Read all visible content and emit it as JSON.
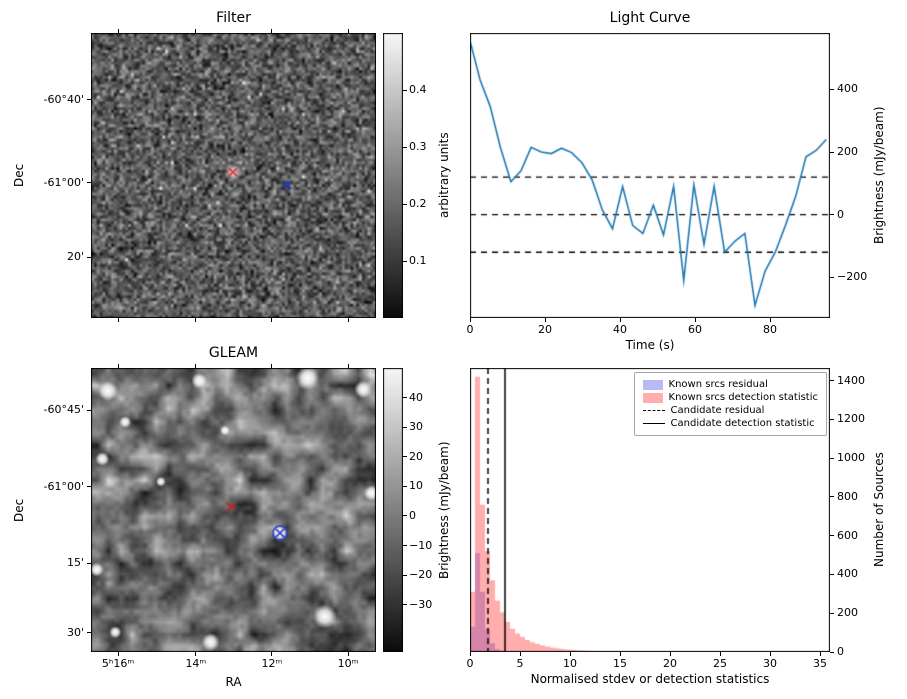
{
  "chart_data": [
    {
      "id": "filter",
      "type": "heatmap",
      "title": "Filter",
      "ylabel": "Dec",
      "yticks": [
        {
          "label": "-60°40'",
          "pos": 0.235
        },
        {
          "label": "-61°00'",
          "pos": 0.526
        },
        {
          "label": "20'",
          "pos": 0.786
        }
      ],
      "xticks": [
        {
          "label": "",
          "pos": 0.095
        },
        {
          "label": "",
          "pos": 0.368
        },
        {
          "label": "",
          "pos": 0.635
        },
        {
          "label": "",
          "pos": 0.902
        }
      ],
      "colorbar": {
        "label": "arbitrary units",
        "min": 0,
        "max": 0.5,
        "ticks": [
          {
            "v": 0.1,
            "label": "0.1"
          },
          {
            "v": 0.2,
            "label": "0.2"
          },
          {
            "v": 0.3,
            "label": "0.3"
          },
          {
            "v": 0.4,
            "label": "0.4"
          }
        ]
      },
      "markers": [
        {
          "shape": "x",
          "color": "#d93a3a",
          "x": 0.498,
          "y": 0.488,
          "halo": true
        },
        {
          "shape": "x",
          "color": "#2438cc",
          "x": 0.688,
          "y": 0.533
        }
      ],
      "noise": {
        "seed": 42,
        "smooth": false,
        "octaves": [
          {
            "res": 100,
            "base": 92,
            "spread": 110,
            "alpha": 1,
            "speckle": 0.012
          }
        ]
      }
    },
    {
      "id": "lightcurve",
      "type": "line",
      "title": "Light Curve",
      "xlabel": "Time (s)",
      "ylabel": "Brightness (mJy/beam)",
      "xlim": [
        0,
        96
      ],
      "ylim": [
        -330,
        580
      ],
      "line_color": "#1f77b4",
      "hlines": [
        120,
        0,
        -120
      ],
      "xticks": [
        {
          "v": 0,
          "label": "0"
        },
        {
          "v": 20,
          "label": "20"
        },
        {
          "v": 40,
          "label": "40"
        },
        {
          "v": 60,
          "label": "60"
        },
        {
          "v": 80,
          "label": "80"
        }
      ],
      "yticks": [
        {
          "v": 400,
          "label": "400"
        },
        {
          "v": 200,
          "label": "200"
        },
        {
          "v": 0,
          "label": "0"
        },
        {
          "v": -200,
          "label": "−200"
        }
      ],
      "x": [
        0,
        2.7,
        5.4,
        8.1,
        10.9,
        13.6,
        16.3,
        19.0,
        21.7,
        24.4,
        27.1,
        29.9,
        32.6,
        35.3,
        38.0,
        40.7,
        43.4,
        46.1,
        48.9,
        51.6,
        54.3,
        57.0,
        59.7,
        62.4,
        65.1,
        67.9,
        70.6,
        73.3,
        76.0,
        78.7,
        81.4,
        84.1,
        86.9,
        89.6,
        92.3,
        95.0
      ],
      "y": [
        555,
        430,
        345,
        215,
        105,
        140,
        215,
        200,
        195,
        212,
        198,
        165,
        110,
        15,
        -45,
        90,
        -35,
        -60,
        30,
        -65,
        90,
        -210,
        95,
        -95,
        90,
        -120,
        -85,
        -60,
        -290,
        -180,
        -120,
        -35,
        60,
        185,
        205,
        240
      ]
    },
    {
      "id": "gleam",
      "type": "heatmap",
      "title": "GLEAM",
      "xlabel": "RA",
      "ylabel": "Dec",
      "yticks": [
        {
          "label": "-60°45'",
          "pos": 0.148
        },
        {
          "label": "-61°00'",
          "pos": 0.419
        },
        {
          "label": "15'",
          "pos": 0.687
        },
        {
          "label": "30'",
          "pos": 0.933
        }
      ],
      "xticks": [
        {
          "label": "5ʰ16ᵐ",
          "pos": 0.095
        },
        {
          "label": "14ᵐ",
          "pos": 0.368
        },
        {
          "label": "12ᵐ",
          "pos": 0.635
        },
        {
          "label": "10ᵐ",
          "pos": 0.902
        }
      ],
      "colorbar": {
        "label": "Brightness (mJy/beam)",
        "min": -46,
        "max": 50,
        "ticks": [
          {
            "v": 40,
            "label": "40"
          },
          {
            "v": 30,
            "label": "30"
          },
          {
            "v": 20,
            "label": "20"
          },
          {
            "v": 10,
            "label": "10"
          },
          {
            "v": 0,
            "label": "0"
          },
          {
            "v": -10,
            "label": "−10"
          },
          {
            "v": -20,
            "label": "−20"
          },
          {
            "v": -30,
            "label": "−30"
          }
        ]
      },
      "sources": [
        {
          "x": 0.06,
          "y": 0.08,
          "r": 10
        },
        {
          "x": 0.38,
          "y": 0.045,
          "r": 8
        },
        {
          "x": 0.76,
          "y": 0.035,
          "r": 12
        },
        {
          "x": 0.955,
          "y": 0.075,
          "r": 9
        },
        {
          "x": 0.12,
          "y": 0.19,
          "r": 6
        },
        {
          "x": 0.04,
          "y": 0.32,
          "r": 7
        },
        {
          "x": 0.47,
          "y": 0.22,
          "r": 5
        },
        {
          "x": 0.985,
          "y": 0.44,
          "r": 8
        },
        {
          "x": 0.02,
          "y": 0.71,
          "r": 7
        },
        {
          "x": 0.245,
          "y": 0.4,
          "r": 5
        },
        {
          "x": 0.663,
          "y": 0.581,
          "r": 8
        },
        {
          "x": 0.82,
          "y": 0.875,
          "r": 12
        },
        {
          "x": 0.42,
          "y": 0.965,
          "r": 9
        },
        {
          "x": 0.085,
          "y": 0.93,
          "r": 6
        }
      ],
      "markers": [
        {
          "shape": "x",
          "color": "#cc2222",
          "x": 0.491,
          "y": 0.489
        },
        {
          "shape": "circle-x",
          "color": "#2438cc",
          "x": 0.663,
          "y": 0.581
        }
      ],
      "noise": {
        "seed": 7,
        "smooth": true,
        "octaves": [
          {
            "res": 24,
            "base": 112,
            "spread": 170,
            "alpha": 1
          },
          {
            "res": 60,
            "base": 112,
            "spread": 120,
            "alpha": 0.3
          }
        ]
      }
    },
    {
      "id": "hist",
      "type": "bar",
      "xlabel": "Normalised stdev or detection statistics",
      "ylabel": "Number of Sources",
      "xlim": [
        0,
        36
      ],
      "ylim": [
        0,
        1465
      ],
      "bin_width": 0.5,
      "xticks": [
        {
          "v": 0,
          "label": "0"
        },
        {
          "v": 5,
          "label": "5"
        },
        {
          "v": 10,
          "label": "10"
        },
        {
          "v": 15,
          "label": "15"
        },
        {
          "v": 20,
          "label": "20"
        },
        {
          "v": 25,
          "label": "25"
        },
        {
          "v": 30,
          "label": "30"
        },
        {
          "v": 35,
          "label": "35"
        }
      ],
      "yticks": [
        {
          "v": 0,
          "label": "0"
        },
        {
          "v": 200,
          "label": "200"
        },
        {
          "v": 400,
          "label": "400"
        },
        {
          "v": 600,
          "label": "600"
        },
        {
          "v": 800,
          "label": "800"
        },
        {
          "v": 1000,
          "label": "1000"
        },
        {
          "v": 1200,
          "label": "1200"
        },
        {
          "v": 1400,
          "label": "1400"
        }
      ],
      "series": [
        {
          "name": "Known srcs residual",
          "fill": "rgba(100,100,230,0.45)",
          "counts": [
            130,
            510,
            310,
            120,
            45,
            15,
            6,
            2,
            1,
            1
          ]
        },
        {
          "name": "Known srcs detection statistic",
          "fill": "rgba(255,60,60,0.42)",
          "counts": [
            310,
            1420,
            760,
            520,
            370,
            265,
            205,
            155,
            120,
            95,
            78,
            62,
            50,
            42,
            34,
            28,
            23,
            19,
            16,
            13,
            11,
            9,
            8,
            7,
            6,
            5,
            5,
            4,
            4,
            3,
            3,
            3,
            2,
            2,
            2,
            2,
            2,
            1,
            1,
            1,
            1,
            1,
            1,
            1,
            1,
            0,
            1,
            0,
            1,
            0,
            1,
            0,
            0,
            1,
            0,
            0,
            0,
            0,
            1,
            0,
            0,
            0,
            1,
            0,
            0,
            0,
            0,
            0,
            0,
            0,
            1,
            0
          ]
        }
      ],
      "vlines": [
        {
          "name": "Candidate residual",
          "style": "dashed",
          "x": 1.8
        },
        {
          "name": "Candidate detection statistic",
          "style": "solid",
          "x": 3.5
        }
      ],
      "legend": [
        {
          "type": "patch",
          "color": "#b9b9f4",
          "label": "Known srcs residual"
        },
        {
          "type": "patch",
          "color": "#ffadad",
          "label": "Known srcs detection statistic"
        },
        {
          "type": "line-dashed",
          "color": "#000000",
          "label": "Candidate residual"
        },
        {
          "type": "line-solid",
          "color": "#000000",
          "label": "Candidate detection statistic"
        }
      ]
    }
  ]
}
